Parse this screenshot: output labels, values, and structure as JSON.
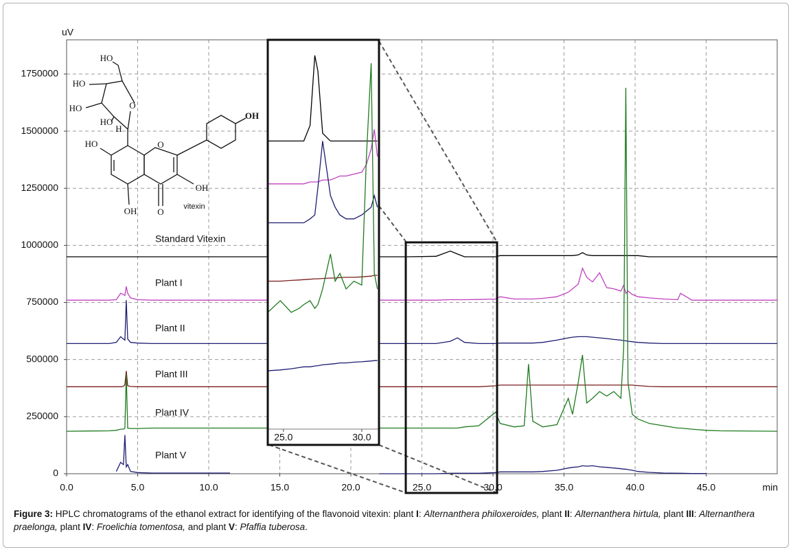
{
  "chart_data": [
    {
      "type": "line",
      "x_label": "min",
      "y_label": "uV",
      "xlim": [
        0,
        50
      ],
      "ylim": [
        0,
        1900000
      ],
      "grid": true,
      "xticks": [
        {
          "value": 0,
          "label": "0.0"
        },
        {
          "value": 5,
          "label": "5.0"
        },
        {
          "value": 10,
          "label": "10.0"
        },
        {
          "value": 15,
          "label": "15.0"
        },
        {
          "value": 20,
          "label": "20.0"
        },
        {
          "value": 25,
          "label": "25.0"
        },
        {
          "value": 30,
          "label": "30.0"
        },
        {
          "value": 35,
          "label": "35.0"
        },
        {
          "value": 40,
          "label": "40.0"
        },
        {
          "value": 45,
          "label": "45.0"
        }
      ],
      "yticks": [
        0,
        250000,
        500000,
        750000,
        1000000,
        1250000,
        1500000,
        1750000
      ],
      "x": [
        0,
        3.0,
        3.5,
        3.8,
        4.0,
        4.1,
        4.2,
        4.3,
        4.5,
        5.0,
        6.0,
        11.5,
        14,
        22,
        24,
        26,
        27.0,
        27.5,
        28,
        29,
        30.2,
        30.5,
        31.5,
        32.2,
        32.5,
        32.8,
        33.5,
        34.5,
        35.3,
        35.6,
        36.0,
        36.3,
        36.6,
        37.0,
        37.5,
        38.0,
        38.5,
        39.0,
        39.2,
        39.35,
        39.5,
        39.8,
        40.2,
        41,
        42,
        43,
        43.2,
        44,
        45,
        46,
        50
      ],
      "series": [
        {
          "name": "Standard Vitexin",
          "color": "#000000",
          "values": [
            950000,
            950000,
            950000,
            950000,
            950000,
            950000,
            950000,
            950000,
            950000,
            950000,
            950000,
            950000,
            950000,
            950000,
            950000,
            952000,
            975000,
            962000,
            950000,
            950000,
            950000,
            955000,
            955000,
            955000,
            955000,
            955000,
            955000,
            955000,
            955000,
            955000,
            958000,
            968000,
            958000,
            955000,
            955000,
            955000,
            955000,
            955000,
            955000,
            955000,
            955000,
            955000,
            955000,
            950000,
            950000,
            950000,
            950000,
            950000,
            950000,
            950000,
            950000
          ]
        },
        {
          "name": "Plant I",
          "color": "#c040c0",
          "values": [
            760000,
            760000,
            762000,
            790000,
            785000,
            780000,
            820000,
            790000,
            770000,
            762000,
            760000,
            760000,
            760000,
            760000,
            760000,
            760000,
            762000,
            762000,
            762000,
            763000,
            765000,
            775000,
            765000,
            765000,
            765000,
            765000,
            768000,
            775000,
            795000,
            810000,
            830000,
            900000,
            860000,
            840000,
            880000,
            815000,
            810000,
            800000,
            825000,
            790000,
            800000,
            785000,
            775000,
            770000,
            765000,
            762000,
            790000,
            760000,
            760000,
            760000,
            760000
          ]
        },
        {
          "name": "Plant II",
          "color": "#1c1c70",
          "values": [
            570000,
            570000,
            575000,
            600000,
            590000,
            585000,
            760000,
            590000,
            575000,
            572000,
            570000,
            570000,
            570000,
            570000,
            570000,
            570000,
            580000,
            595000,
            575000,
            570000,
            570000,
            572000,
            572000,
            572000,
            572000,
            572000,
            575000,
            585000,
            595000,
            598000,
            600000,
            600000,
            600000,
            598000,
            595000,
            592000,
            588000,
            585000,
            583000,
            582000,
            580000,
            578000,
            575000,
            572000,
            570000,
            570000,
            570000,
            570000,
            570000,
            570000,
            570000
          ]
        },
        {
          "name": "Plant III",
          "color": "#7a1c1c",
          "values": [
            381000,
            381000,
            381000,
            381000,
            383000,
            390000,
            450000,
            385000,
            382000,
            381000,
            381000,
            381000,
            381000,
            381000,
            381000,
            381000,
            381000,
            381000,
            381000,
            381000,
            385000,
            388000,
            388000,
            388000,
            388000,
            388000,
            388000,
            388000,
            388000,
            388000,
            388000,
            388000,
            388000,
            388000,
            388000,
            388000,
            388000,
            388000,
            388000,
            388000,
            388000,
            388000,
            386000,
            382000,
            381000,
            381000,
            381000,
            381000,
            381000,
            381000,
            381000
          ]
        },
        {
          "name": "Plant IV",
          "color": "#1e7a1e",
          "values": [
            186000,
            188000,
            190000,
            195000,
            195000,
            200000,
            435000,
            200000,
            198000,
            198000,
            200000,
            200000,
            200000,
            200000,
            200000,
            200000,
            200000,
            200000,
            205000,
            210000,
            270000,
            220000,
            205000,
            210000,
            480000,
            230000,
            205000,
            215000,
            330000,
            260000,
            400000,
            520000,
            310000,
            330000,
            360000,
            340000,
            360000,
            330000,
            550000,
            1690000,
            400000,
            260000,
            240000,
            220000,
            210000,
            200000,
            200000,
            195000,
            190000,
            188000,
            186000
          ]
        },
        {
          "name": "Plant V",
          "color": "#1c1c70",
          "values": [
            null,
            null,
            10000,
            50000,
            40000,
            170000,
            30000,
            40000,
            10000,
            5000,
            3000,
            3000,
            null,
            0,
            0,
            0,
            2000,
            2000,
            2000,
            2000,
            5000,
            8000,
            8000,
            8000,
            8000,
            8000,
            10000,
            15000,
            25000,
            28000,
            30000,
            35000,
            33000,
            35000,
            30000,
            28000,
            25000,
            22000,
            20000,
            20000,
            18000,
            15000,
            10000,
            6000,
            3000,
            2000,
            2000,
            1000,
            1000,
            null,
            null
          ]
        }
      ]
    },
    {
      "type": "line",
      "xlim": [
        24,
        31.1
      ],
      "ylim": [
        0,
        100
      ],
      "xticks": [
        {
          "value": 25,
          "label": "25.0"
        },
        {
          "value": 30,
          "label": "30.0"
        }
      ],
      "x": [
        24,
        24.8,
        25.5,
        26,
        26.3,
        26.7,
        27.0,
        27.2,
        27.5,
        28,
        28.3,
        28.6,
        29,
        29.5,
        30,
        30.3,
        30.6,
        30.8,
        31.0
      ],
      "series": [
        {
          "color": "#000000",
          "values": [
            74,
            74,
            74,
            74,
            74,
            78,
            96,
            92,
            76,
            74,
            74,
            74,
            74,
            74,
            74,
            74,
            74,
            74,
            74
          ]
        },
        {
          "color": "#c040c0",
          "values": [
            63,
            63,
            63,
            63,
            63,
            63.5,
            63.5,
            63.5,
            64,
            64,
            64.5,
            65,
            65,
            65.5,
            66,
            68,
            72,
            77,
            70
          ]
        },
        {
          "color": "#1c1c70",
          "values": [
            53,
            53,
            53,
            53,
            53,
            54,
            55,
            62,
            74,
            60,
            57,
            55,
            54,
            54,
            55,
            56,
            57,
            60,
            57
          ]
        },
        {
          "color": "#7a1c1c",
          "values": [
            38,
            38,
            38.2,
            38.3,
            38.4,
            38.5,
            38.6,
            38.6,
            38.7,
            38.8,
            38.8,
            38.9,
            39,
            39,
            39.1,
            39.2,
            39.3,
            39.5,
            39.5
          ]
        },
        {
          "color": "#1e7a1e",
          "values": [
            30,
            33,
            30,
            31,
            32,
            33,
            31,
            32,
            36,
            45,
            38,
            40,
            36,
            38,
            37,
            70,
            94,
            40,
            36
          ]
        },
        {
          "color": "#1c1c70",
          "values": [
            15,
            15.2,
            15.5,
            15.8,
            16,
            16,
            16.2,
            16.3,
            16.5,
            16.7,
            16.8,
            17,
            17,
            17.2,
            17.3,
            17.4,
            17.5,
            17.6,
            17.6
          ]
        }
      ]
    }
  ],
  "structure": {
    "labels": [
      "HO",
      "HO",
      "HO",
      "HO",
      "H",
      "O",
      "OH",
      "HO",
      "O",
      "OH",
      "OH",
      "O",
      "vitexin"
    ]
  },
  "caption": [
    "Figure 3:",
    " HPLC chromatograms of the ethanol extract for identifying of the flavonoid vitexin: plant ",
    "I",
    ": ",
    "Alternanthera philoxeroides,",
    " plant ",
    "II",
    ": ",
    "Alternanthera hirtula,",
    " plant ",
    "III",
    ": ",
    "Alternanthera praelonga,",
    " plant ",
    "IV",
    ": ",
    "Froelichia tomentosa,",
    " and plant ",
    "V",
    ": ",
    "Pfaffia tuberosa",
    "."
  ]
}
